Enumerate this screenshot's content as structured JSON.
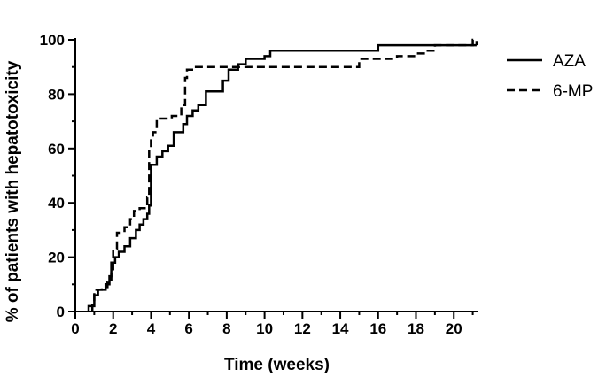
{
  "chart_data": {
    "type": "line",
    "step": true,
    "title": "",
    "xlabel": "Time (weeks)",
    "ylabel": "% of patients with hepatotoxicity",
    "xlim": [
      0,
      21.3
    ],
    "ylim": [
      0,
      100
    ],
    "x_major_ticks": [
      0,
      2,
      4,
      6,
      8,
      10,
      12,
      14,
      16,
      18,
      20
    ],
    "y_major_ticks": [
      0,
      20,
      40,
      60,
      80,
      100
    ],
    "x_tick_labels": [
      "0",
      "2",
      "4",
      "6",
      "8",
      "10",
      "12",
      "14",
      "16",
      "18",
      "20"
    ],
    "y_tick_labels": [
      "0",
      "20",
      "40",
      "60",
      "80",
      "100"
    ],
    "grid": false,
    "legend_position": "right-top",
    "series": [
      {
        "name": "AZA",
        "style": "solid",
        "color": "#000000",
        "points": [
          [
            0.7,
            0
          ],
          [
            0.7,
            2
          ],
          [
            1.0,
            2
          ],
          [
            1.0,
            6
          ],
          [
            1.2,
            6
          ],
          [
            1.2,
            8
          ],
          [
            1.6,
            8
          ],
          [
            1.6,
            10
          ],
          [
            1.8,
            10
          ],
          [
            1.8,
            13
          ],
          [
            1.9,
            13
          ],
          [
            1.9,
            18
          ],
          [
            2.1,
            18
          ],
          [
            2.1,
            20
          ],
          [
            2.3,
            20
          ],
          [
            2.3,
            22
          ],
          [
            2.6,
            22
          ],
          [
            2.6,
            24
          ],
          [
            2.9,
            24
          ],
          [
            2.9,
            27
          ],
          [
            3.2,
            27
          ],
          [
            3.2,
            30
          ],
          [
            3.4,
            30
          ],
          [
            3.4,
            32
          ],
          [
            3.6,
            32
          ],
          [
            3.6,
            34
          ],
          [
            3.8,
            34
          ],
          [
            3.8,
            36
          ],
          [
            3.9,
            36
          ],
          [
            3.9,
            39
          ],
          [
            4.0,
            39
          ],
          [
            4.0,
            54
          ],
          [
            4.3,
            54
          ],
          [
            4.3,
            57
          ],
          [
            4.6,
            57
          ],
          [
            4.6,
            59
          ],
          [
            4.9,
            59
          ],
          [
            4.9,
            61
          ],
          [
            5.2,
            61
          ],
          [
            5.2,
            66
          ],
          [
            5.7,
            66
          ],
          [
            5.7,
            69
          ],
          [
            5.9,
            69
          ],
          [
            5.9,
            72
          ],
          [
            6.2,
            72
          ],
          [
            6.2,
            74
          ],
          [
            6.5,
            74
          ],
          [
            6.5,
            76
          ],
          [
            6.9,
            76
          ],
          [
            6.9,
            81
          ],
          [
            7.8,
            81
          ],
          [
            7.8,
            85
          ],
          [
            8.1,
            85
          ],
          [
            8.1,
            89
          ],
          [
            8.6,
            89
          ],
          [
            8.6,
            91
          ],
          [
            9.0,
            91
          ],
          [
            9.0,
            93
          ],
          [
            10.0,
            93
          ],
          [
            10.0,
            94
          ],
          [
            10.3,
            94
          ],
          [
            10.3,
            96
          ],
          [
            16.0,
            96
          ],
          [
            16.0,
            98
          ],
          [
            21.2,
            98
          ]
        ]
      },
      {
        "name": "6-MP",
        "style": "dashed",
        "color": "#000000",
        "points": [
          [
            0.9,
            0
          ],
          [
            0.9,
            3
          ],
          [
            1.0,
            3
          ],
          [
            1.0,
            8
          ],
          [
            1.4,
            8
          ],
          [
            1.4,
            9
          ],
          [
            1.7,
            9
          ],
          [
            1.7,
            11
          ],
          [
            1.9,
            11
          ],
          [
            1.9,
            14
          ],
          [
            2.0,
            14
          ],
          [
            2.0,
            23
          ],
          [
            2.2,
            23
          ],
          [
            2.2,
            29
          ],
          [
            2.6,
            29
          ],
          [
            2.6,
            31
          ],
          [
            2.9,
            31
          ],
          [
            2.9,
            34
          ],
          [
            3.1,
            34
          ],
          [
            3.1,
            37
          ],
          [
            3.4,
            37
          ],
          [
            3.4,
            38
          ],
          [
            3.8,
            38
          ],
          [
            3.8,
            42
          ],
          [
            3.9,
            42
          ],
          [
            3.9,
            60
          ],
          [
            4.0,
            60
          ],
          [
            4.0,
            63
          ],
          [
            4.1,
            63
          ],
          [
            4.1,
            66
          ],
          [
            4.3,
            66
          ],
          [
            4.3,
            71
          ],
          [
            5.1,
            71
          ],
          [
            5.1,
            72
          ],
          [
            5.6,
            72
          ],
          [
            5.6,
            76
          ],
          [
            5.8,
            76
          ],
          [
            5.8,
            86
          ],
          [
            5.9,
            86
          ],
          [
            5.9,
            89
          ],
          [
            6.3,
            89
          ],
          [
            6.3,
            90
          ],
          [
            15.0,
            90
          ],
          [
            15.0,
            93
          ],
          [
            17.0,
            93
          ],
          [
            17.0,
            94
          ],
          [
            18.0,
            94
          ],
          [
            18.0,
            95
          ],
          [
            18.5,
            95
          ],
          [
            18.5,
            96
          ],
          [
            19.0,
            96
          ],
          [
            19.0,
            98
          ],
          [
            21.0,
            98
          ],
          [
            21.0,
            100
          ],
          [
            21.2,
            100
          ],
          [
            21.2,
            98
          ]
        ]
      }
    ]
  }
}
